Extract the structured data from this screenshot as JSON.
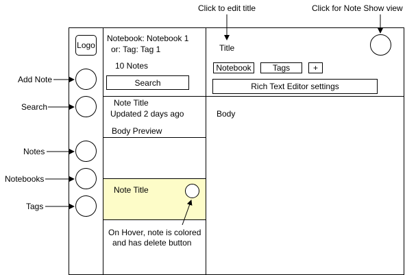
{
  "annotations": {
    "edit_title": "Click to edit title",
    "note_show": "Click for Note Show view",
    "add_note": "Add Note",
    "search": "Search",
    "notes": "Notes",
    "notebooks": "Notebooks",
    "tags": "Tags",
    "hover_line1": "On Hover, note is colored",
    "hover_line2": "and has delete button"
  },
  "sidebar": {
    "logo": "Logo"
  },
  "list_panel": {
    "notebook_line": "Notebook: Notebook 1",
    "tag_line": "or: Tag: Tag 1",
    "count": "10 Notes",
    "search_button": "Search"
  },
  "notes": [
    {
      "title": "Note Title",
      "updated": "Updated 2 days ago",
      "preview": "Body Preview"
    },
    {
      "title": "Note Title"
    }
  ],
  "editor": {
    "title": "Title",
    "notebook_button": "Notebook",
    "tags_button": "Tags",
    "add_button": "+",
    "rte_settings": "Rich Text Editor settings",
    "body": "Body"
  },
  "colors": {
    "hover_highlight": "#fdfcc8",
    "line": "#000000"
  }
}
